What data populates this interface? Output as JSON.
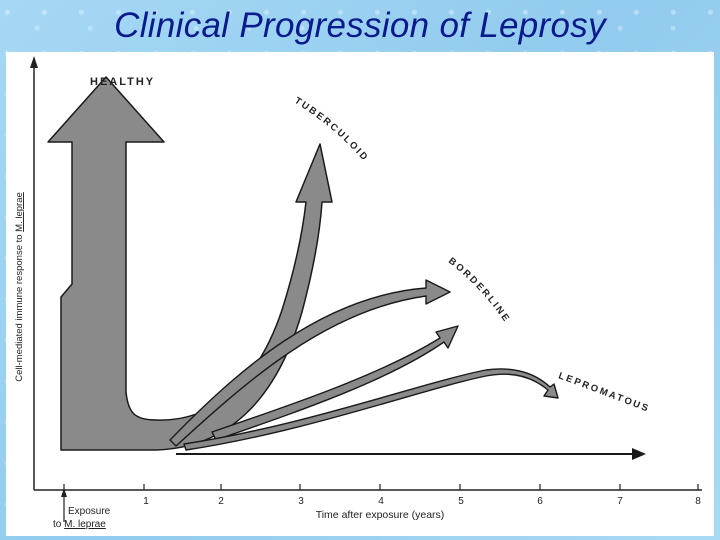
{
  "slide": {
    "title": "Clinical Progression of Leprosy"
  },
  "diagram": {
    "y_axis_label_prefix": "Cell-mediated immune response to ",
    "y_axis_label_species": "M. leprae",
    "x_axis_label": "Time after exposure (years)",
    "x_ticks": [
      "1",
      "2",
      "3",
      "4",
      "5",
      "6",
      "7",
      "8"
    ],
    "exposure_label_line1": "Exposure",
    "exposure_label_line2_prefix": "to ",
    "exposure_label_line2_species": "M. leprae",
    "outcomes": {
      "healthy": "HEALTHY",
      "tuberculoid": "TUBERCULOID",
      "borderline": "BORDERLINE",
      "lepromatous": "LEPROMATOUS"
    }
  },
  "colors": {
    "title": "#0a1a8c",
    "arrow_fill": "#8a8a8a",
    "arrow_stroke": "#1a1a1a",
    "background": "#9fd3f2"
  }
}
